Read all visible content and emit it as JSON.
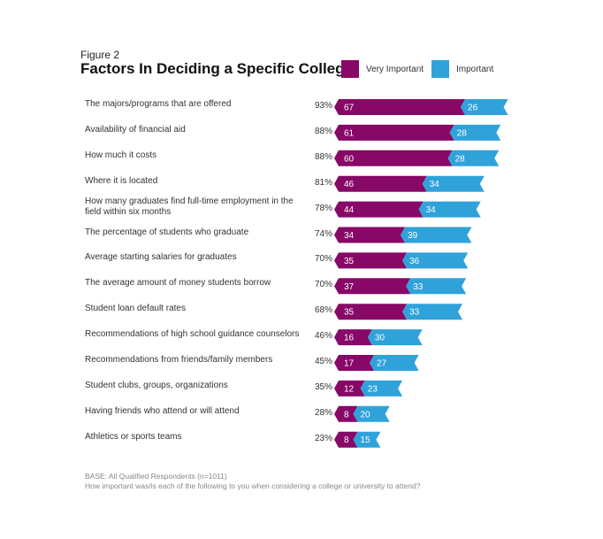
{
  "figure_label": "Figure 2",
  "chart_data": {
    "type": "bar",
    "stacked": true,
    "orientation": "horizontal",
    "title": "Factors In Deciding a Specific College",
    "legend_placement": "top-right",
    "colors": {
      "very_important": "#870867",
      "important": "#30a2da"
    },
    "categories": [
      "The majors/programs that are offered",
      "Availability of financial aid",
      "How much it costs",
      "Where it is located",
      "How many graduates find full-time employment in the field within six months",
      "The percentage of students who graduate",
      "Average starting salaries for graduates",
      "The average amount of money students borrow",
      "Student loan default rates",
      "Recommendations of high school guidance counselors",
      "Recommendations from friends/family members",
      "Student clubs, groups, organizations",
      "Having friends who attend or will attend",
      "Athletics or sports teams"
    ],
    "totals": [
      "93%",
      "88%",
      "88%",
      "81%",
      "78%",
      "74%",
      "70%",
      "70%",
      "68%",
      "46%",
      "45%",
      "35%",
      "28%",
      "23%"
    ],
    "series": [
      {
        "name": "Very Important",
        "values": [
          67,
          61,
          60,
          46,
          44,
          34,
          35,
          37,
          35,
          16,
          17,
          12,
          8,
          8
        ]
      },
      {
        "name": "Important",
        "values": [
          26,
          28,
          28,
          34,
          34,
          39,
          36,
          33,
          33,
          30,
          27,
          23,
          20,
          15
        ]
      }
    ]
  },
  "footnote": {
    "base": "BASE: All Qualified Respondents (n=1011)",
    "question": "How important was/is each of the following to you when considering a college or university to attend?"
  }
}
